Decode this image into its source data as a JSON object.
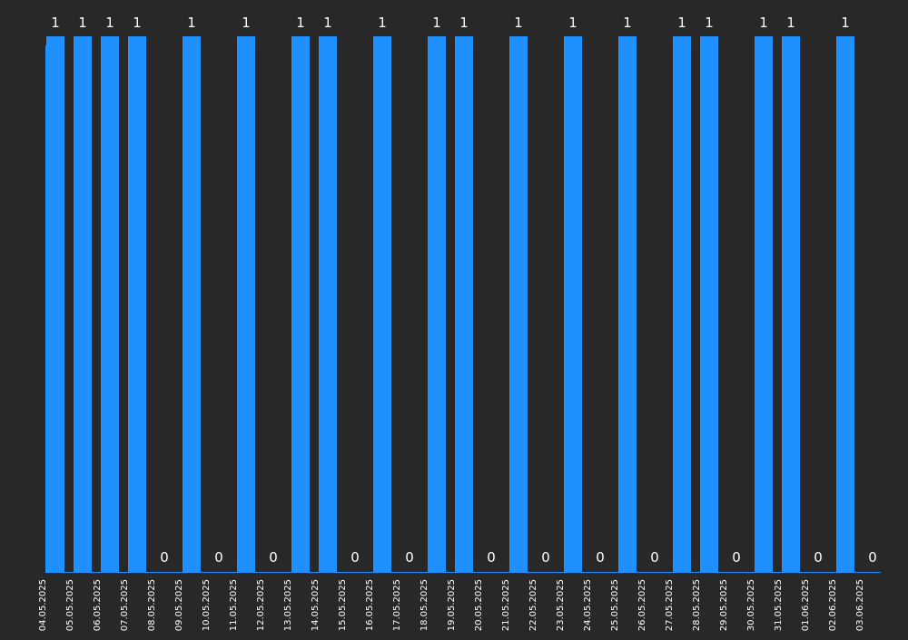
{
  "chart_data": {
    "type": "bar",
    "categories": [
      "04.05.2025",
      "05.05.2025",
      "06.05.2025",
      "07.05.2025",
      "08.05.2025",
      "09.05.2025",
      "10.05.2025",
      "11.05.2025",
      "12.05.2025",
      "13.05.2025",
      "14.05.2025",
      "15.05.2025",
      "16.05.2025",
      "17.05.2025",
      "18.05.2025",
      "19.05.2025",
      "20.05.2025",
      "21.05.2025",
      "22.05.2025",
      "23.05.2025",
      "24.05.2025",
      "25.05.2025",
      "26.05.2025",
      "27.05.2025",
      "28.05.2025",
      "29.05.2025",
      "30.05.2025",
      "31.05.2025",
      "01.06.2025",
      "02.06.2025",
      "03.06.2025"
    ],
    "values": [
      1,
      1,
      1,
      1,
      0,
      1,
      0,
      1,
      0,
      1,
      1,
      0,
      1,
      0,
      1,
      1,
      0,
      1,
      0,
      1,
      0,
      1,
      0,
      1,
      1,
      0,
      1,
      1,
      0,
      1,
      0
    ],
    "data_labels": [
      "1",
      "1",
      "1",
      "1",
      "0",
      "1",
      "0",
      "1",
      "0",
      "1",
      "1",
      "0",
      "1",
      "0",
      "1",
      "1",
      "0",
      "1",
      "0",
      "1",
      "0",
      "1",
      "0",
      "1",
      "1",
      "0",
      "1",
      "1",
      "0",
      "1",
      "0"
    ],
    "title": "",
    "xlabel": "",
    "ylabel": "",
    "ylim": [
      0,
      1
    ],
    "grid": false,
    "legend": "none",
    "bar_color": "#1e90ff",
    "axis_color": "#1e90ff",
    "text_color": "#ffffff",
    "background_color": "#282828"
  }
}
